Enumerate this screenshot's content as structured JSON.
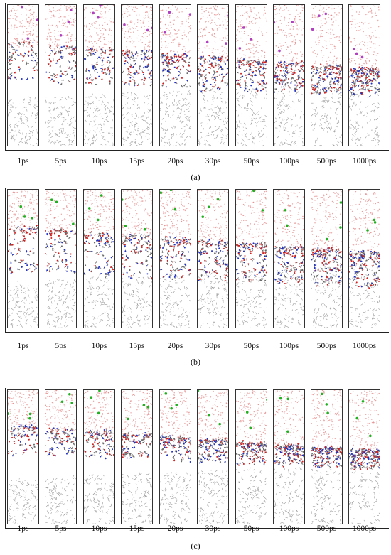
{
  "panels": [
    {
      "caption": "(a)",
      "time_labels": [
        "1ps",
        "5ps",
        "10ps",
        "15ps",
        "20ps",
        "30ps",
        "50ps",
        "100ps",
        "500ps",
        "1000ps"
      ],
      "ion_color": "#b040c0"
    },
    {
      "caption": "(b)",
      "time_labels": [
        "1ps",
        "5ps",
        "10ps",
        "15ps",
        "20ps",
        "30ps",
        "50ps",
        "100ps",
        "500ps",
        "1000ps"
      ],
      "ion_color": "#22b022"
    },
    {
      "caption": "(c)",
      "time_labels": [
        "1ps",
        "5ps",
        "10ps",
        "15ps",
        "20ps",
        "30ps",
        "50ps",
        "100ps",
        "500ps",
        "1000ps"
      ],
      "ion_color": "#22b022"
    }
  ],
  "colors": {
    "water": "#e48a8a",
    "oxygen": "#d02020",
    "nitrogen": "#2030c0",
    "carbon_chain": "#6a6a6a",
    "substrate": "#9a9a9a",
    "frame": "#333333"
  }
}
